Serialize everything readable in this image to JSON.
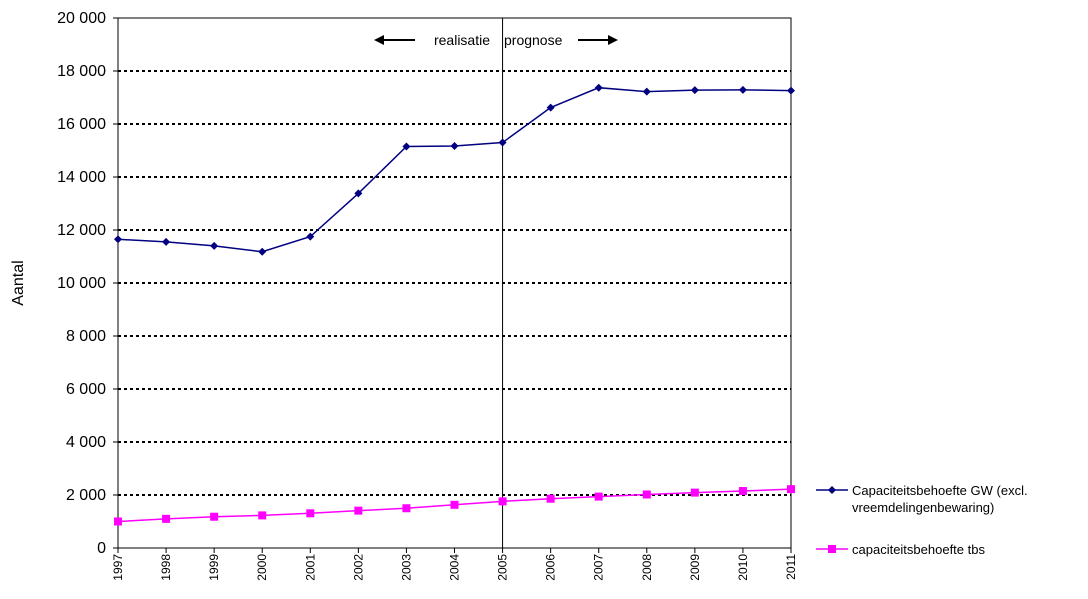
{
  "chart_data": {
    "type": "line",
    "ylabel": "Aantal",
    "ylim": [
      0,
      20000
    ],
    "yticks": [
      "0",
      "2 000",
      "4 000",
      "6 000",
      "8 000",
      "10 000",
      "12 000",
      "14 000",
      "16 000",
      "18 000",
      "20 000"
    ],
    "x": [
      "1997",
      "1998",
      "1999",
      "2000",
      "2001",
      "2002",
      "2003",
      "2004",
      "2005",
      "2006",
      "2007",
      "2008",
      "2009",
      "2010",
      "2011"
    ],
    "grid": "horizontal dotted",
    "legend_position": "right",
    "divider_at": "2005",
    "annotations": {
      "left": "realisatie",
      "right": "prognose"
    },
    "series": [
      {
        "name": "Capaciteitsbehoefte GW (excl. vreemdelingenbewaring)",
        "legend_lines": [
          "Capaciteitsbehoefte GW (excl.",
          "vreemdelingenbewaring)"
        ],
        "color": "#000080",
        "marker": "diamond",
        "values": [
          11650,
          11550,
          11400,
          11180,
          11750,
          13380,
          15150,
          15170,
          15300,
          16620,
          17370,
          17220,
          17280,
          17290,
          17260
        ]
      },
      {
        "name": "capaciteitsbehoefte tbs",
        "legend_lines": [
          "capaciteitsbehoefte tbs"
        ],
        "color": "#FF00FF",
        "marker": "square",
        "values": [
          1000,
          1100,
          1180,
          1230,
          1310,
          1410,
          1500,
          1630,
          1760,
          1860,
          1940,
          2020,
          2090,
          2150,
          2220
        ]
      }
    ]
  }
}
